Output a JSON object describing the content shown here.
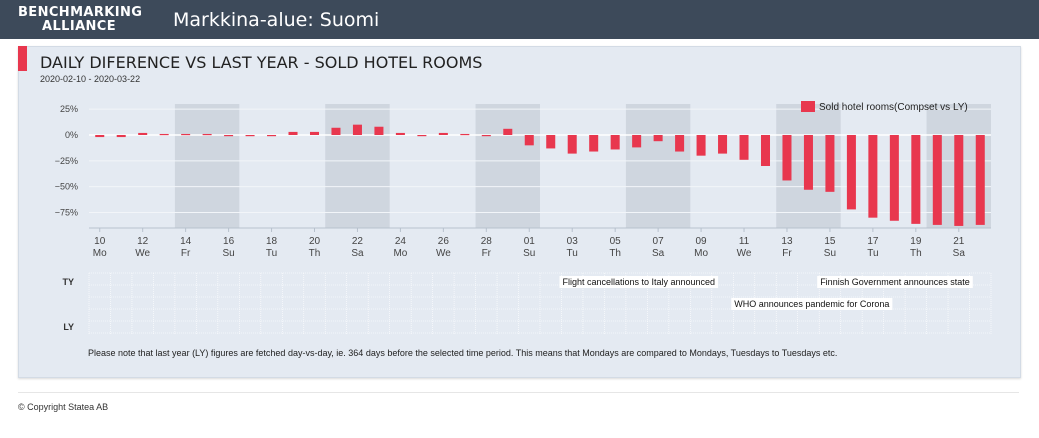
{
  "header": {
    "logo_line1": "BENCHMARKING",
    "logo_line2": "ALLIANCE",
    "title": "Markkina-alue: Suomi"
  },
  "card": {
    "title": "DAILY DIFERENCE VS LAST YEAR - SOLD HOTEL ROOMS",
    "date_range": "2020-02-10 - 2020-03-22",
    "note": "Please note that last year (LY) figures are fetched day-vs-day, ie. 364 days before the selected time period. This means that Mondays are compared to Mondays, Tuesdays to Tuesdays etc."
  },
  "footer": {
    "copyright": "© Copyright Statea AB"
  },
  "colors": {
    "bar": "#e8374e",
    "header": "#3d4a5a",
    "card": "#e4eaf2",
    "weekend": "#cfd6df"
  },
  "chart_data": {
    "type": "bar",
    "title": "",
    "legend": {
      "label": "Sold hotel rooms(Compset vs LY)",
      "placement": "top-right"
    },
    "ylim": [
      -90,
      30
    ],
    "yticks": [
      {
        "value": 25,
        "label": "25%"
      },
      {
        "value": 0,
        "label": "0%"
      },
      {
        "value": -25,
        "label": "−25%"
      },
      {
        "value": -50,
        "label": "−50%"
      },
      {
        "value": -75,
        "label": "−75%"
      }
    ],
    "categories": [
      "2020-02-10",
      "2020-02-11",
      "2020-02-12",
      "2020-02-13",
      "2020-02-14",
      "2020-02-15",
      "2020-02-16",
      "2020-02-17",
      "2020-02-18",
      "2020-02-19",
      "2020-02-20",
      "2020-02-21",
      "2020-02-22",
      "2020-02-23",
      "2020-02-24",
      "2020-02-25",
      "2020-02-26",
      "2020-02-27",
      "2020-02-28",
      "2020-02-29",
      "2020-03-01",
      "2020-03-02",
      "2020-03-03",
      "2020-03-04",
      "2020-03-05",
      "2020-03-06",
      "2020-03-07",
      "2020-03-08",
      "2020-03-09",
      "2020-03-10",
      "2020-03-11",
      "2020-03-12",
      "2020-03-13",
      "2020-03-14",
      "2020-03-15",
      "2020-03-16",
      "2020-03-17",
      "2020-03-18",
      "2020-03-19",
      "2020-03-20",
      "2020-03-21",
      "2020-03-22"
    ],
    "series": [
      {
        "name": "Sold hotel rooms(Compset vs LY)",
        "values": [
          -2,
          -2,
          2,
          1,
          1,
          1,
          -1,
          0,
          -1,
          3,
          3,
          7,
          10,
          8,
          2,
          -1,
          2,
          1,
          0,
          6,
          -10,
          -13,
          -18,
          -16,
          -14,
          -12,
          -6,
          -16,
          -20,
          -18,
          -24,
          -30,
          -44,
          -53,
          -55,
          -72,
          -80,
          -83,
          -86,
          -87,
          -88,
          -87
        ]
      }
    ],
    "weekend_bands": [
      [
        "2020-02-14",
        "2020-02-16"
      ],
      [
        "2020-02-21",
        "2020-02-23"
      ],
      [
        "2020-02-28",
        "2020-03-01"
      ],
      [
        "2020-03-06",
        "2020-03-08"
      ],
      [
        "2020-03-13",
        "2020-03-15"
      ],
      [
        "2020-03-20",
        "2020-03-22"
      ]
    ],
    "x_ticks": [
      {
        "date": "2020-02-10",
        "day": "10",
        "weekday": "Mo"
      },
      {
        "date": "2020-02-12",
        "day": "12",
        "weekday": "We"
      },
      {
        "date": "2020-02-14",
        "day": "14",
        "weekday": "Fr"
      },
      {
        "date": "2020-02-16",
        "day": "16",
        "weekday": "Su"
      },
      {
        "date": "2020-02-18",
        "day": "18",
        "weekday": "Tu"
      },
      {
        "date": "2020-02-20",
        "day": "20",
        "weekday": "Th"
      },
      {
        "date": "2020-02-22",
        "day": "22",
        "weekday": "Sa"
      },
      {
        "date": "2020-02-24",
        "day": "24",
        "weekday": "Mo"
      },
      {
        "date": "2020-02-26",
        "day": "26",
        "weekday": "We"
      },
      {
        "date": "2020-02-28",
        "day": "28",
        "weekday": "Fr"
      },
      {
        "date": "2020-03-01",
        "day": "01",
        "weekday": "Su"
      },
      {
        "date": "2020-03-03",
        "day": "03",
        "weekday": "Tu"
      },
      {
        "date": "2020-03-05",
        "day": "05",
        "weekday": "Th"
      },
      {
        "date": "2020-03-07",
        "day": "07",
        "weekday": "Sa"
      },
      {
        "date": "2020-03-09",
        "day": "09",
        "weekday": "Mo"
      },
      {
        "date": "2020-03-11",
        "day": "11",
        "weekday": "We"
      },
      {
        "date": "2020-03-13",
        "day": "13",
        "weekday": "Fr"
      },
      {
        "date": "2020-03-15",
        "day": "15",
        "weekday": "Su"
      },
      {
        "date": "2020-03-17",
        "day": "17",
        "weekday": "Tu"
      },
      {
        "date": "2020-03-19",
        "day": "19",
        "weekday": "Th"
      },
      {
        "date": "2020-03-21",
        "day": "21",
        "weekday": "Sa"
      }
    ],
    "event_rows": [
      "TY",
      "LY"
    ],
    "events": [
      {
        "row": "TY",
        "lane": 0,
        "date": "2020-03-03",
        "text": "Flight cancellations to Italy announced"
      },
      {
        "row": "TY",
        "lane": 0,
        "date": "2020-03-15",
        "text": "Finnish Government announces state"
      },
      {
        "row": "TY",
        "lane": 1,
        "date": "2020-03-11",
        "text": "WHO announces pandemic for Corona"
      }
    ]
  }
}
